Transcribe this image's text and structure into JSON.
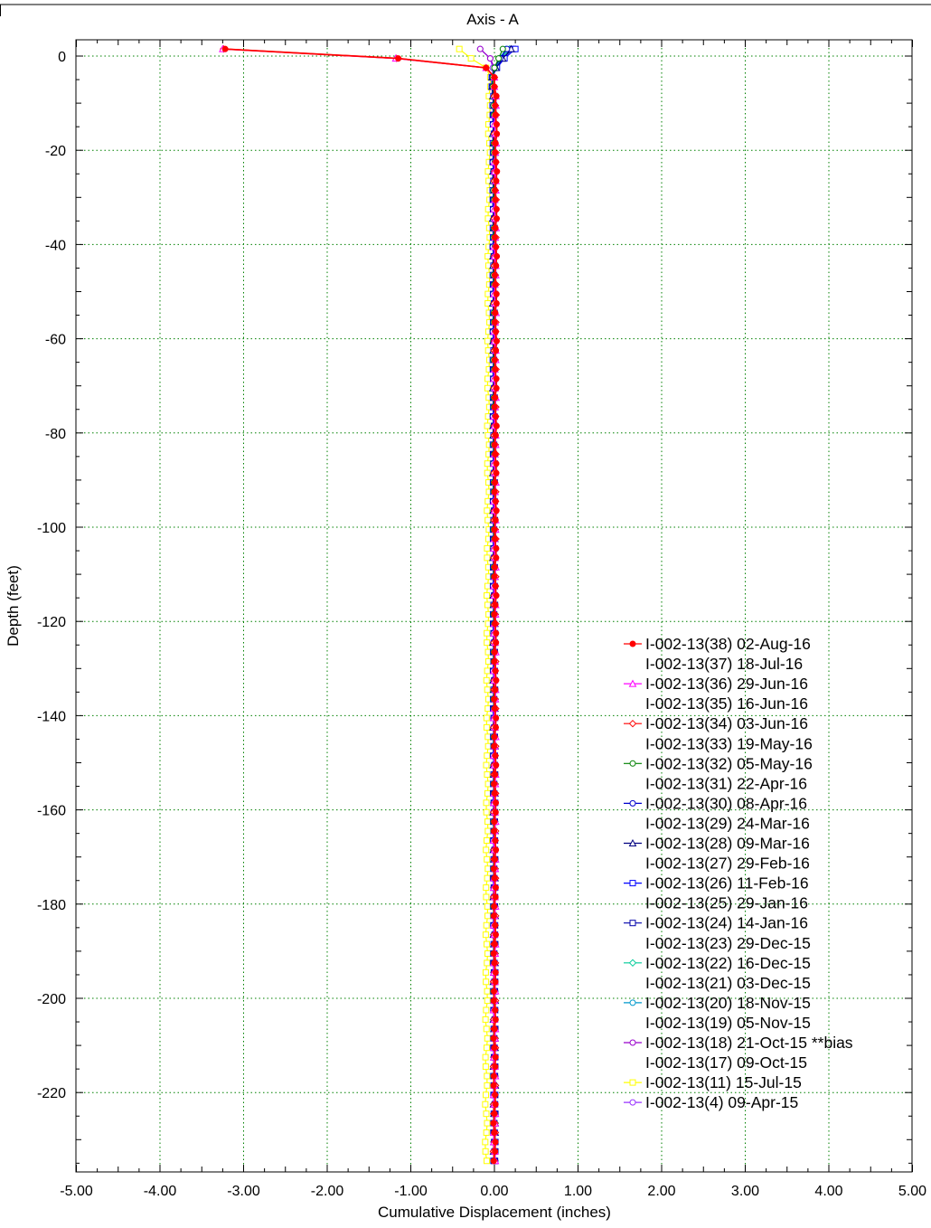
{
  "chart_data": {
    "type": "line",
    "title": "Axis - A",
    "xlabel": "Cumulative Displacement (inches)",
    "ylabel": "Depth (feet)",
    "xlim": [
      -5,
      5
    ],
    "ylim": [
      -237,
      3.5
    ],
    "x_ticks": [
      -5,
      -4,
      -3,
      -2,
      -1,
      0,
      1,
      2,
      3,
      4,
      5
    ],
    "x_tick_labels": [
      "-5.00",
      "-4.00",
      "-3.00",
      "-2.00",
      "-1.00",
      "0.00",
      "1.00",
      "2.00",
      "3.00",
      "4.00",
      "5.00"
    ],
    "y_ticks": [
      0,
      -20,
      -40,
      -60,
      -80,
      -100,
      -120,
      -140,
      -160,
      -180,
      -200,
      -220
    ],
    "y_tick_labels": [
      "0",
      "-20",
      "-40",
      "-60",
      "-80",
      "-100",
      "-120",
      "-140",
      "-160",
      "-180",
      "-200",
      "-220"
    ],
    "grid": true,
    "legend_position": "bottom-right",
    "depth_top": 1.5,
    "depth_step": 2,
    "depth_bottom": -234.5,
    "series": [
      {
        "name": "I-002-13(38) 02-Aug-16",
        "color": "#ff0000",
        "marker": "filled-circle",
        "top_values": [
          -3.22,
          -1.15,
          -0.1,
          0,
          0
        ],
        "deep_value": 0.02,
        "bottom_value": 0.0
      },
      {
        "name": "I-002-13(37) 18-Jul-16",
        "color": "",
        "marker": "none",
        "top_values": [],
        "deep_value": 0.02,
        "bottom_value": 0.0
      },
      {
        "name": "I-002-13(36) 29-Jun-16",
        "color": "#ff00ff",
        "marker": "triangle",
        "top_values": [
          -3.25,
          -1.18,
          -0.1,
          0,
          0
        ],
        "deep_value": 0.01,
        "bottom_value": 0.0
      },
      {
        "name": "I-002-13(35) 16-Jun-16",
        "color": "",
        "marker": "none",
        "top_values": [],
        "deep_value": 0.01,
        "bottom_value": 0.0
      },
      {
        "name": "I-002-13(34) 03-Jun-16",
        "color": "#ff0000",
        "marker": "diamond",
        "top_values": [
          -3.24,
          -1.17,
          -0.1,
          0,
          0
        ],
        "deep_value": 0.01,
        "bottom_value": 0.0
      },
      {
        "name": "I-002-13(33) 19-May-16",
        "color": "",
        "marker": "none",
        "top_values": [],
        "deep_value": 0.01,
        "bottom_value": 0.0
      },
      {
        "name": "I-002-13(32) 05-May-16",
        "color": "#008000",
        "marker": "circle",
        "top_values": [
          0.1,
          0.05,
          0,
          -0.02,
          -0.02
        ],
        "deep_value": 0.0,
        "bottom_value": 0.0
      },
      {
        "name": "I-002-13(31) 22-Apr-16",
        "color": "",
        "marker": "none",
        "top_values": [],
        "deep_value": 0.0,
        "bottom_value": 0.0
      },
      {
        "name": "I-002-13(30) 08-Apr-16",
        "color": "#0000cc",
        "marker": "circle",
        "top_values": [
          0.15,
          0.07,
          0,
          -0.03,
          -0.03
        ],
        "deep_value": -0.01,
        "bottom_value": 0.0
      },
      {
        "name": "I-002-13(29) 24-Mar-16",
        "color": "",
        "marker": "none",
        "top_values": [],
        "deep_value": 0.0,
        "bottom_value": 0.0
      },
      {
        "name": "I-002-13(28) 09-Mar-16",
        "color": "#000080",
        "marker": "triangle",
        "top_values": [
          0.2,
          0.1,
          0.02,
          -0.03,
          -0.03
        ],
        "deep_value": -0.01,
        "bottom_value": 0.0
      },
      {
        "name": "I-002-13(27) 29-Feb-16",
        "color": "",
        "marker": "none",
        "top_values": [],
        "deep_value": 0.0,
        "bottom_value": 0.0
      },
      {
        "name": "I-002-13(26) 11-Feb-16",
        "color": "#0000ff",
        "marker": "square",
        "top_values": [
          0.25,
          0.12,
          0.03,
          -0.03,
          -0.03
        ],
        "deep_value": -0.01,
        "bottom_value": 0.0
      },
      {
        "name": "I-002-13(25) 29-Jan-16",
        "color": "",
        "marker": "none",
        "top_values": [],
        "deep_value": 0.0,
        "bottom_value": 0.0
      },
      {
        "name": "I-002-13(24) 14-Jan-16",
        "color": "#0000aa",
        "marker": "square",
        "top_values": [
          0.22,
          0.1,
          0.02,
          -0.03,
          -0.03
        ],
        "deep_value": -0.01,
        "bottom_value": 0.0
      },
      {
        "name": "I-002-13(23) 29-Dec-15",
        "color": "",
        "marker": "none",
        "top_values": [],
        "deep_value": 0.0,
        "bottom_value": 0.0
      },
      {
        "name": "I-002-13(22) 16-Dec-15",
        "color": "#00cc99",
        "marker": "diamond",
        "top_values": [
          0.18,
          0.08,
          0.02,
          -0.02,
          -0.02
        ],
        "deep_value": 0.0,
        "bottom_value": 0.0
      },
      {
        "name": "I-002-13(21) 03-Dec-15",
        "color": "",
        "marker": "none",
        "top_values": [],
        "deep_value": 0.0,
        "bottom_value": 0.0
      },
      {
        "name": "I-002-13(20) 18-Nov-15",
        "color": "#0099cc",
        "marker": "circle",
        "top_values": [
          0.14,
          0.06,
          0.01,
          -0.02,
          -0.02
        ],
        "deep_value": 0.0,
        "bottom_value": 0.0
      },
      {
        "name": "I-002-13(19) 05-Nov-15",
        "color": "",
        "marker": "none",
        "top_values": [],
        "deep_value": 0.0,
        "bottom_value": 0.0
      },
      {
        "name": "I-002-13(18) 21-Oct-15 **bias",
        "color": "#9900cc",
        "marker": "circle",
        "top_values": [
          -0.17,
          -0.05,
          0,
          -0.02,
          -0.02
        ],
        "deep_value": 0.0,
        "bottom_value": 0.0
      },
      {
        "name": "I-002-13(17) 09-Oct-15",
        "color": "",
        "marker": "none",
        "top_values": [],
        "deep_value": 0.0,
        "bottom_value": 0.0
      },
      {
        "name": "I-002-13(11) 15-Jul-15",
        "color": "#ffff00",
        "marker": "square",
        "top_values": [
          -0.42,
          -0.28,
          -0.1,
          -0.05,
          -0.05
        ],
        "deep_value": -0.06,
        "bottom_value": -0.1
      },
      {
        "name": "I-002-13(4) 09-Apr-15",
        "color": "#9933ff",
        "marker": "circle",
        "top_values": [
          -0.17,
          -0.05,
          -0.02,
          -0.02,
          -0.02
        ],
        "deep_value": -0.01,
        "bottom_value": 0.0
      }
    ]
  }
}
